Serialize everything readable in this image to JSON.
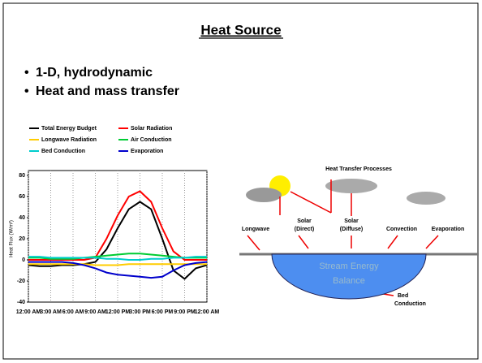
{
  "title": "Heat Source",
  "bullets": [
    "1-D, hydrodynamic",
    "Heat and mass transfer"
  ],
  "chart_data": {
    "type": "line",
    "y_label": "Heat Flux (W/m²)",
    "x": [
      0,
      1.5,
      3,
      4.5,
      6,
      7.5,
      9,
      10.5,
      12,
      13.5,
      15,
      16.5,
      18,
      19.5,
      21,
      22.5,
      24
    ],
    "xlim": [
      0,
      24
    ],
    "xticks": [
      {
        "value": 0,
        "label": "12:00 AM"
      },
      {
        "value": 3,
        "label": "3:00 AM"
      },
      {
        "value": 6,
        "label": "6:00 AM"
      },
      {
        "value": 9,
        "label": "9:00 AM"
      },
      {
        "value": 12,
        "label": "12:00 PM"
      },
      {
        "value": 15,
        "label": "3:00 PM"
      },
      {
        "value": 18,
        "label": "6:00 PM"
      },
      {
        "value": 21,
        "label": "9:00 PM"
      },
      {
        "value": 24,
        "label": "12:00 AM"
      }
    ],
    "ylim": [
      -40,
      80
    ],
    "yticks": [
      -40,
      -20,
      0,
      20,
      40,
      60,
      80
    ],
    "grid": true,
    "series": [
      {
        "name": "Total Energy Budget",
        "color": "#000000",
        "values": [
          -5,
          -6,
          -6,
          -5,
          -5,
          -4,
          -2,
          10,
          30,
          48,
          55,
          48,
          20,
          -10,
          -18,
          -8,
          -5
        ]
      },
      {
        "name": "Solar Radiation",
        "color": "#ff0000",
        "values": [
          0,
          0,
          0,
          0,
          0,
          0,
          2,
          20,
          42,
          60,
          65,
          55,
          30,
          8,
          0,
          0,
          0
        ]
      },
      {
        "name": "Longwave Radiation",
        "color": "#ffcc00",
        "values": [
          -4,
          -4,
          -4,
          -4,
          -4,
          -4,
          -5,
          -5,
          -5,
          -4,
          -4,
          -4,
          -4,
          -4,
          -4,
          -4,
          -4
        ]
      },
      {
        "name": "Air Conduction",
        "color": "#00cc33",
        "values": [
          2,
          2,
          1,
          1,
          1,
          2,
          3,
          4,
          5,
          6,
          6,
          5,
          4,
          3,
          2,
          2,
          2
        ]
      },
      {
        "name": "Bed Conduction",
        "color": "#00cccc",
        "values": [
          3,
          3,
          2,
          2,
          2,
          2,
          2,
          1,
          1,
          0,
          0,
          1,
          1,
          2,
          2,
          3,
          3
        ]
      },
      {
        "name": "Evaporation",
        "color": "#0000cc",
        "values": [
          -2,
          -2,
          -2,
          -2,
          -3,
          -5,
          -8,
          -12,
          -14,
          -15,
          -16,
          -17,
          -16,
          -10,
          -5,
          -3,
          -2
        ]
      }
    ]
  },
  "diagram": {
    "title": "Heat Transfer Processes",
    "labels": [
      "Longwave",
      "Solar",
      "(Direct)",
      "Solar",
      "(Diffuse)",
      "Convection",
      "Evaporation"
    ],
    "water": [
      "Stream Energy",
      "Balance"
    ],
    "bed": [
      "Bed",
      "Conduction"
    ]
  }
}
